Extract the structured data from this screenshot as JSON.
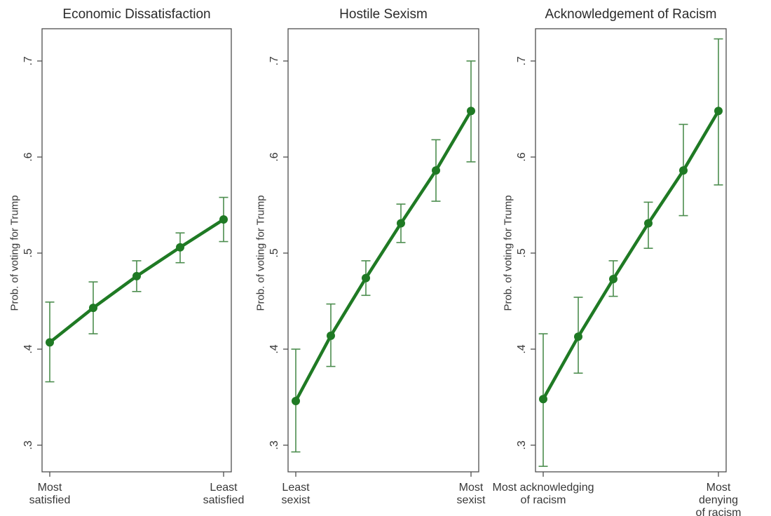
{
  "figure": {
    "background": "#ffffff",
    "line_color": "#1f7a24",
    "marker_color": "#1f7a24",
    "ci_color": "#4c8d4e",
    "frame_color": "#4d4d4d",
    "text_color": "#383838",
    "shared_ylabel": "Prob. of voting for Trump",
    "y_ticks": [
      0.3,
      0.4,
      0.5,
      0.6,
      0.7
    ],
    "y_tick_labels": [
      ".3",
      ".4",
      ".5",
      ".6",
      ".7"
    ],
    "ylim": [
      0.272,
      0.734
    ]
  },
  "chart_data": [
    {
      "type": "line",
      "title": "Economic Dissatisfaction",
      "ylabel": "Prob. of voting for Trump",
      "x_axis": {
        "first": "Most\nsatisfied",
        "last": "Least\nsatisfied"
      },
      "n_points": 5,
      "values": [
        0.407,
        0.443,
        0.476,
        0.506,
        0.535
      ],
      "ci_low": [
        0.366,
        0.416,
        0.46,
        0.49,
        0.512
      ],
      "ci_high": [
        0.449,
        0.47,
        0.492,
        0.521,
        0.558
      ]
    },
    {
      "type": "line",
      "title": "Hostile Sexism",
      "ylabel": "Prob. of voting for Trump",
      "x_axis": {
        "first": "Least\nsexist",
        "last": "Most\nsexist"
      },
      "n_points": 6,
      "values": [
        0.346,
        0.414,
        0.474,
        0.531,
        0.586,
        0.648
      ],
      "ci_low": [
        0.293,
        0.382,
        0.456,
        0.511,
        0.554,
        0.595
      ],
      "ci_high": [
        0.4,
        0.447,
        0.492,
        0.551,
        0.618,
        0.7
      ]
    },
    {
      "type": "line",
      "title": "Acknowledgement of Racism",
      "ylabel": "Prob. of voting for Trump",
      "x_axis": {
        "first": "Most acknowledging\nof racism",
        "last": "Most denying\nof racism"
      },
      "n_points": 6,
      "values": [
        0.348,
        0.413,
        0.473,
        0.531,
        0.586,
        0.648
      ],
      "ci_low": [
        0.278,
        0.375,
        0.455,
        0.505,
        0.539,
        0.571
      ],
      "ci_high": [
        0.416,
        0.454,
        0.492,
        0.553,
        0.634,
        0.723
      ]
    }
  ]
}
